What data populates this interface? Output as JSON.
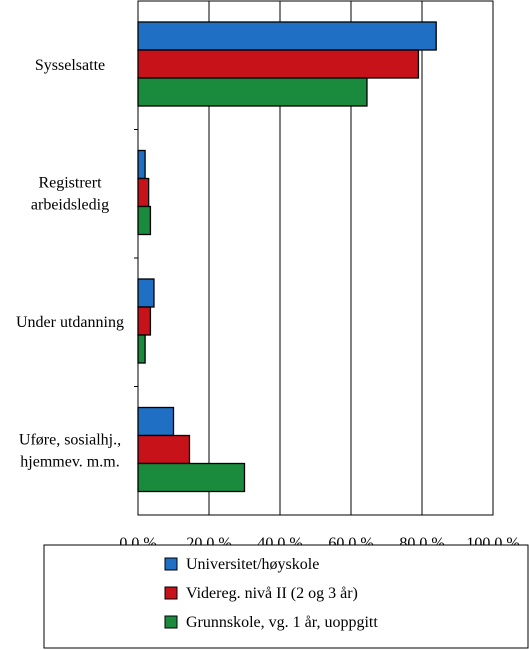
{
  "chart_data": {
    "type": "bar",
    "orientation": "horizontal",
    "categories": [
      [
        "Sysselsatte"
      ],
      [
        "Registrert",
        "arbeidsledig"
      ],
      [
        "Under utdanning"
      ],
      [
        "Uføre, sosialhj.,",
        "hjemmev. m.m."
      ]
    ],
    "series": [
      {
        "name": "Universitet/høyskole",
        "color": "#1f6fc4",
        "values": [
          84.0,
          2.0,
          4.5,
          10.0
        ]
      },
      {
        "name": "Videreg. nivå II (2 og 3 år)",
        "color": "#c8121a",
        "values": [
          79.0,
          3.0,
          3.5,
          14.5
        ]
      },
      {
        "name": "Grunnskole, vg. 1 år, uoppgitt",
        "color": "#1a8a3c",
        "values": [
          64.5,
          3.5,
          2.0,
          30.0
        ]
      }
    ],
    "xlim": [
      0,
      100
    ],
    "xticks": [
      0,
      20,
      40,
      60,
      80,
      100
    ],
    "xtick_labels": [
      "0,0 %",
      "20,0 %",
      "40,0 %",
      "60,0 %",
      "80,0 %",
      "100,0 %"
    ],
    "grid": "vertical",
    "legend_position": "bottom"
  }
}
